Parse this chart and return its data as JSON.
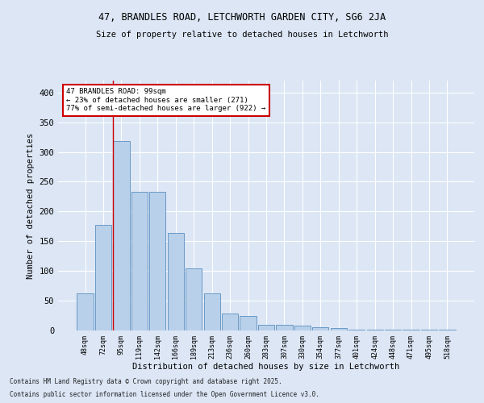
{
  "title1": "47, BRANDLES ROAD, LETCHWORTH GARDEN CITY, SG6 2JA",
  "title2": "Size of property relative to detached houses in Letchworth",
  "xlabel": "Distribution of detached houses by size in Letchworth",
  "ylabel": "Number of detached properties",
  "categories": [
    "48sqm",
    "72sqm",
    "95sqm",
    "119sqm",
    "142sqm",
    "166sqm",
    "189sqm",
    "213sqm",
    "236sqm",
    "260sqm",
    "283sqm",
    "307sqm",
    "330sqm",
    "354sqm",
    "377sqm",
    "401sqm",
    "424sqm",
    "448sqm",
    "471sqm",
    "495sqm",
    "518sqm"
  ],
  "values": [
    62,
    177,
    318,
    233,
    233,
    164,
    104,
    62,
    28,
    24,
    10,
    10,
    8,
    6,
    4,
    2,
    1,
    1,
    2,
    1,
    2
  ],
  "bar_color": "#b8d0ea",
  "bar_edge_color": "#5a8fc0",
  "annotation_text": "47 BRANDLES ROAD: 99sqm\n← 23% of detached houses are smaller (271)\n77% of semi-detached houses are larger (922) →",
  "annotation_box_color": "#ffffff",
  "annotation_box_edge": "#cc0000",
  "property_line_color": "#cc0000",
  "ylim": [
    0,
    420
  ],
  "yticks": [
    0,
    50,
    100,
    150,
    200,
    250,
    300,
    350,
    400
  ],
  "background_color": "#dce6f5",
  "grid_color": "#ffffff",
  "footnote1": "Contains HM Land Registry data © Crown copyright and database right 2025.",
  "footnote2": "Contains public sector information licensed under the Open Government Licence v3.0."
}
